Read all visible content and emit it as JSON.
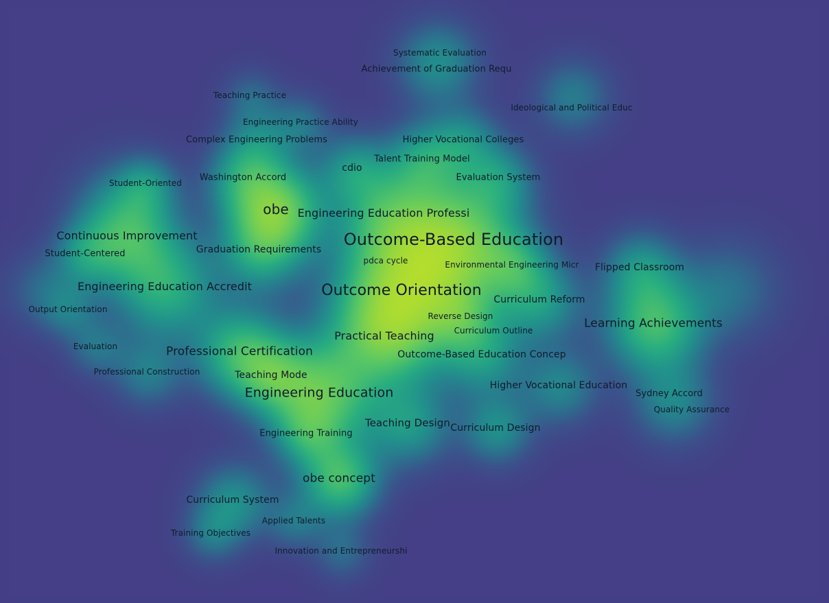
{
  "keywords": [
    {
      "id": "outcome-based-education",
      "label": "Outcome-Based Education",
      "weight": 5
    },
    {
      "id": "outcome-orientation",
      "label": "Outcome Orientation",
      "weight": 5
    },
    {
      "id": "obe",
      "label": "obe",
      "weight": 4
    },
    {
      "id": "engineering-education",
      "label": "Engineering Education",
      "weight": 4
    },
    {
      "id": "professional-certification",
      "label": "Professional Certification",
      "weight": 3
    },
    {
      "id": "learning-achievements",
      "label": "Learning Achievements",
      "weight": 3
    },
    {
      "id": "obe-concept",
      "label": "obe concept",
      "weight": 3
    },
    {
      "id": "engineering-education-accredit",
      "label": "Engineering Education Accredit",
      "weight": 3
    },
    {
      "id": "continuous-improvement",
      "label": "Continuous Improvement",
      "weight": 3
    },
    {
      "id": "practical-teaching",
      "label": "Practical Teaching",
      "weight": 3
    },
    {
      "id": "engineering-education-professi",
      "label": "Engineering Education Professi",
      "weight": 3
    },
    {
      "id": "teaching-design",
      "label": "Teaching Design",
      "weight": 3
    },
    {
      "id": "curriculum-design",
      "label": "Curriculum Design",
      "weight": 2
    },
    {
      "id": "curriculum-reform",
      "label": "Curriculum Reform",
      "weight": 2
    },
    {
      "id": "graduation-requirements",
      "label": "Graduation Requirements",
      "weight": 2
    },
    {
      "id": "outcome-based-education-concep",
      "label": "Outcome-Based Education Concep",
      "weight": 2
    },
    {
      "id": "curriculum-system",
      "label": "Curriculum System",
      "weight": 2
    },
    {
      "id": "teaching-mode",
      "label": "Teaching Mode",
      "weight": 2
    },
    {
      "id": "higher-vocational-education",
      "label": "Higher Vocational Education",
      "weight": 2
    },
    {
      "id": "sydney-accord",
      "label": "Sydney Accord",
      "weight": 1
    },
    {
      "id": "quality-assurance",
      "label": "Quality Assurance",
      "weight": 1
    },
    {
      "id": "flipped-classroom",
      "label": "Flipped Classroom",
      "weight": 2
    },
    {
      "id": "environmental-engineering-micr",
      "label": "Environmental Engineering Micr",
      "weight": 1
    },
    {
      "id": "pdca-cycle",
      "label": "pdca cycle",
      "weight": 1
    },
    {
      "id": "reverse-design",
      "label": "Reverse Design",
      "weight": 1
    },
    {
      "id": "curriculum-outline",
      "label": "Curriculum Outline",
      "weight": 1
    },
    {
      "id": "engineering-training",
      "label": "Engineering Training",
      "weight": 1
    },
    {
      "id": "professional-construction",
      "label": "Professional Construction",
      "weight": 1
    },
    {
      "id": "evaluation",
      "label": "Evaluation",
      "weight": 1
    },
    {
      "id": "output-orientation",
      "label": "Output Orientation",
      "weight": 1
    },
    {
      "id": "student-centered",
      "label": "Student-Centered",
      "weight": 1
    },
    {
      "id": "student-oriented",
      "label": "Student-Oriented",
      "weight": 1
    },
    {
      "id": "washington-accord",
      "label": "Washington Accord",
      "weight": 2
    },
    {
      "id": "cdio",
      "label": "cdio",
      "weight": 2
    },
    {
      "id": "talent-training-model",
      "label": "Talent Training Model",
      "weight": 2
    },
    {
      "id": "evaluation-system",
      "label": "Evaluation System",
      "weight": 2
    },
    {
      "id": "complex-engineering-problems",
      "label": "Complex Engineering Problems",
      "weight": 2
    },
    {
      "id": "higher-vocational-colleges",
      "label": "Higher Vocational Colleges",
      "weight": 2
    },
    {
      "id": "engineering-practice-ability",
      "label": "Engineering Practice Ability",
      "weight": 1
    },
    {
      "id": "teaching-practice",
      "label": "Teaching Practice",
      "weight": 1
    },
    {
      "id": "ideological-and-political-educ",
      "label": "Ideological and Political Educ",
      "weight": 1
    },
    {
      "id": "achievement-of-graduation-requ",
      "label": "Achievement of Graduation Requ",
      "weight": 2
    },
    {
      "id": "systematic-evaluation",
      "label": "Systematic Evaluation",
      "weight": 1
    },
    {
      "id": "applied-talents",
      "label": "Applied Talents",
      "weight": 1
    },
    {
      "id": "training-objectives",
      "label": "Training Objectives",
      "weight": 1
    },
    {
      "id": "innovation-and-entrepreneurshi",
      "label": "Innovation and Entrepreneurshi",
      "weight": 1
    }
  ],
  "colors": {
    "background": "#443f86",
    "label": "#121a2c",
    "density_scale": [
      "#443f86",
      "#3b528b",
      "#2c728e",
      "#21918c",
      "#28ae80",
      "#5ec962",
      "#addc30",
      "#fde725"
    ]
  }
}
